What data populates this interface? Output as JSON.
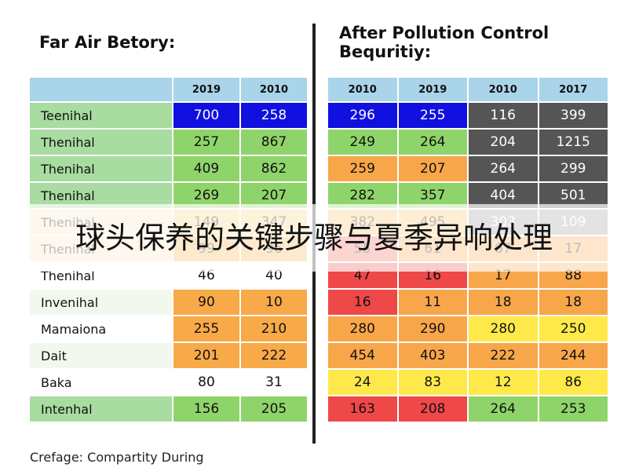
{
  "chart_data": [
    {
      "type": "table",
      "title": "Far Air Betory:",
      "columns": [
        "2019",
        "2010"
      ],
      "rows": [
        {
          "label": "Teenihal",
          "values": [
            700,
            258
          ],
          "colors": [
            "#1010e0",
            "#1010e0"
          ]
        },
        {
          "label": "Thenihal",
          "values": [
            257,
            867
          ],
          "colors": [
            "#8fd46a",
            "#8fd46a"
          ]
        },
        {
          "label": "Thenihal",
          "values": [
            409,
            862
          ],
          "colors": [
            "#8fd46a",
            "#8fd46a"
          ]
        },
        {
          "label": "Thenihal",
          "values": [
            269,
            207
          ],
          "colors": [
            "#8fd46a",
            "#8fd46a"
          ]
        },
        {
          "label": "Thenihal",
          "values": [
            149,
            347
          ],
          "colors": [
            "#f5d37a",
            "#f5d37a"
          ]
        },
        {
          "label": "Thenihal",
          "values": [
            99,
            96
          ],
          "colors": [
            "#f7b24b",
            "#f7b24b"
          ]
        },
        {
          "label": "Thenihal",
          "values": [
            46,
            40
          ],
          "colors": [
            "#ffffff",
            "#ffffff"
          ]
        },
        {
          "label": "Invenihal",
          "values": [
            90,
            10
          ],
          "colors": [
            "#f8a948",
            "#f8a948"
          ]
        },
        {
          "label": "Mamaiona",
          "values": [
            255,
            210
          ],
          "colors": [
            "#f8a948",
            "#f8a948"
          ]
        },
        {
          "label": "Dait",
          "values": [
            201,
            222
          ],
          "colors": [
            "#f8a948",
            "#f8a948"
          ]
        },
        {
          "label": "Baka",
          "values": [
            80,
            31
          ],
          "colors": [
            "#ffffff",
            "#ffffff"
          ]
        },
        {
          "label": "Intenhal",
          "values": [
            156,
            205
          ],
          "colors": [
            "#8fd46a",
            "#8fd46a"
          ]
        }
      ],
      "row_label_colors": [
        "#a8dca0",
        "#a8dca0",
        "#a8dca0",
        "#a8dca0",
        "#f6e0c2",
        "#f6e0c2",
        "#ffffff",
        "#f3f8ee",
        "#ffffff",
        "#f3f8ee",
        "#ffffff",
        "#a8dca0"
      ]
    },
    {
      "type": "table",
      "title": "After Pollution Control Bequritiy:",
      "columns": [
        "2010",
        "2019",
        "2010",
        "2017"
      ],
      "rows": [
        {
          "values": [
            296,
            255,
            116,
            399
          ],
          "colors": [
            "#1010e0",
            "#1010e0",
            "#555555",
            "#555555"
          ]
        },
        {
          "values": [
            249,
            264,
            204,
            1215
          ],
          "colors": [
            "#8fd46a",
            "#8fd46a",
            "#555555",
            "#555555"
          ]
        },
        {
          "values": [
            259,
            207,
            264,
            299
          ],
          "colors": [
            "#f7a64a",
            "#f7a64a",
            "#555555",
            "#555555"
          ]
        },
        {
          "values": [
            282,
            357,
            404,
            501
          ],
          "colors": [
            "#8fd46a",
            "#8fd46a",
            "#555555",
            "#555555"
          ]
        },
        {
          "values": [
            382,
            495,
            303,
            109
          ],
          "colors": [
            "#f6c06a",
            "#f6c06a",
            "#9a9a9a",
            "#9a9a9a"
          ]
        },
        {
          "values": [
            55,
            61,
            67,
            17
          ],
          "colors": [
            "#f26a5a",
            "#f7a64a",
            "#f7a64a",
            "#f7a64a"
          ]
        },
        {
          "values": [
            47,
            16,
            17,
            88
          ],
          "colors": [
            "#ee4848",
            "#ee4848",
            "#f7a64a",
            "#f7a64a"
          ]
        },
        {
          "values": [
            16,
            11,
            18,
            18
          ],
          "colors": [
            "#ee4848",
            "#f7a64a",
            "#f7a64a",
            "#f7a64a"
          ]
        },
        {
          "values": [
            280,
            290,
            280,
            250
          ],
          "colors": [
            "#f7a64a",
            "#f7a64a",
            "#ffe94a",
            "#ffe94a"
          ]
        },
        {
          "values": [
            454,
            403,
            222,
            244
          ],
          "colors": [
            "#f7a64a",
            "#f7a64a",
            "#f7a64a",
            "#f7a64a"
          ]
        },
        {
          "values": [
            24,
            83,
            12,
            86
          ],
          "colors": [
            "#ffe94a",
            "#ffe94a",
            "#ffe94a",
            "#ffe94a"
          ]
        },
        {
          "values": [
            163,
            208,
            264,
            253
          ],
          "colors": [
            "#ee4848",
            "#ee4848",
            "#8fd46a",
            "#8fd46a"
          ]
        }
      ]
    }
  ],
  "text_colors": {
    "#1010e0": "#ffffff",
    "#555555": "#ffffff",
    "#9a9a9a": "#ffffff"
  },
  "caption": "Crefage: Compartity During",
  "overlay_text": "球头保养的关键步骤与夏季异响处理"
}
